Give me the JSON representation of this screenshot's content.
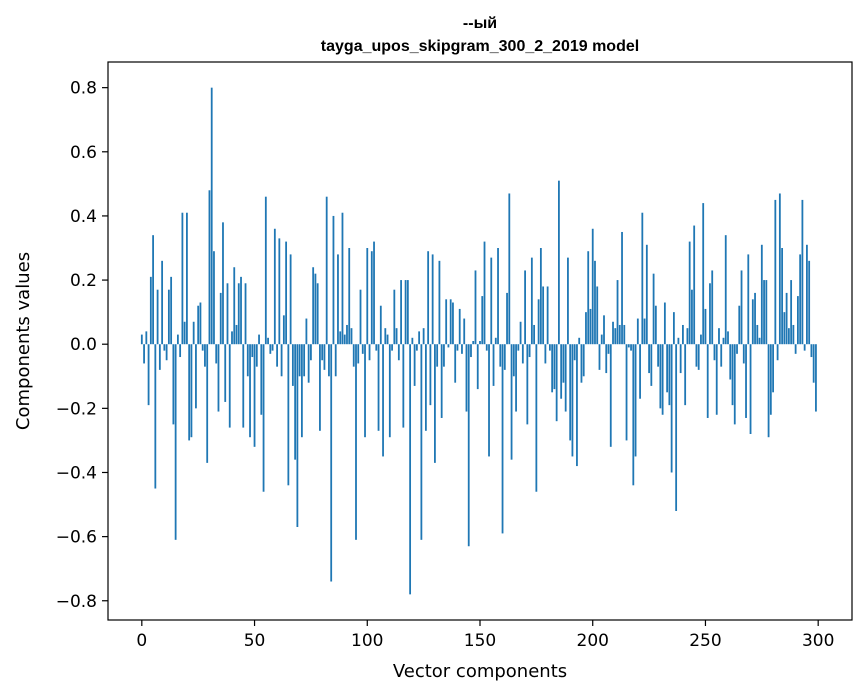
{
  "chart_data": {
    "type": "bar",
    "title_line1": "--ый",
    "title_line2": "tayga_upos_skipgram_300_2_2019 model",
    "xlabel": "Vector components",
    "ylabel": "Components values",
    "xlim": [
      -15,
      315
    ],
    "ylim": [
      -0.86,
      0.88
    ],
    "xticks": [
      0,
      50,
      100,
      150,
      200,
      250,
      300
    ],
    "xtick_labels": [
      "0",
      "50",
      "100",
      "150",
      "200",
      "250",
      "300"
    ],
    "yticks": [
      0.8,
      0.6,
      0.4,
      0.2,
      0.0,
      -0.2,
      -0.4,
      -0.6,
      -0.8
    ],
    "ytick_labels": [
      "0.8",
      "0.6",
      "0.4",
      "0.2",
      "0.0",
      "−0.2",
      "−0.4",
      "−0.6",
      "−0.8"
    ],
    "bar_color": "#1f77b4",
    "values": [
      0.03,
      -0.06,
      0.04,
      -0.19,
      0.21,
      0.34,
      -0.45,
      0.17,
      -0.08,
      0.26,
      -0.02,
      -0.05,
      0.17,
      0.21,
      -0.25,
      -0.61,
      0.03,
      -0.04,
      0.41,
      0.07,
      0.41,
      -0.3,
      -0.29,
      0.07,
      -0.2,
      0.12,
      0.13,
      -0.02,
      -0.07,
      -0.37,
      0.48,
      0.8,
      0.29,
      -0.06,
      -0.21,
      0.16,
      0.38,
      -0.18,
      0.19,
      -0.26,
      0.04,
      0.24,
      0.06,
      0.19,
      0.21,
      -0.26,
      0.19,
      -0.1,
      -0.29,
      -0.04,
      -0.32,
      -0.07,
      0.03,
      -0.22,
      -0.46,
      0.46,
      0.02,
      -0.03,
      -0.02,
      0.36,
      -0.07,
      0.33,
      -0.1,
      0.09,
      0.32,
      -0.44,
      0.28,
      -0.13,
      -0.36,
      -0.57,
      -0.1,
      -0.29,
      -0.1,
      0.08,
      -0.12,
      -0.05,
      0.24,
      0.22,
      0.19,
      -0.27,
      -0.05,
      -0.08,
      0.46,
      -0.1,
      -0.74,
      0.4,
      -0.1,
      0.28,
      0.04,
      0.41,
      0.03,
      0.06,
      0.3,
      0.05,
      -0.07,
      -0.61,
      -0.06,
      0.17,
      -0.03,
      -0.29,
      0.3,
      -0.05,
      0.29,
      0.32,
      -0.02,
      -0.27,
      0.12,
      -0.35,
      0.05,
      0.03,
      -0.29,
      -0.02,
      0.17,
      0.05,
      -0.05,
      0.2,
      -0.26,
      0.2,
      0.2,
      -0.78,
      0.02,
      -0.13,
      -0.02,
      0.04,
      -0.61,
      0.05,
      -0.27,
      0.29,
      -0.19,
      0.28,
      -0.37,
      -0.07,
      0.26,
      -0.23,
      -0.07,
      0.14,
      -0.01,
      0.14,
      0.13,
      -0.12,
      -0.02,
      0.11,
      -0.03,
      0.08,
      -0.21,
      -0.63,
      -0.04,
      0.01,
      0.23,
      -0.14,
      0.01,
      0.15,
      0.32,
      -0.02,
      -0.35,
      0.27,
      -0.13,
      0.02,
      0.3,
      -0.07,
      -0.59,
      -0.08,
      0.16,
      0.47,
      -0.36,
      -0.1,
      -0.21,
      -0.02,
      0.07,
      -0.06,
      0.23,
      -0.25,
      -0.04,
      0.27,
      0.06,
      -0.46,
      0.14,
      0.3,
      0.18,
      -0.06,
      0.18,
      -0.02,
      -0.15,
      -0.14,
      -0.24,
      0.51,
      -0.17,
      -0.12,
      -0.21,
      0.27,
      -0.3,
      -0.35,
      -0.05,
      -0.38,
      0.02,
      -0.12,
      -0.1,
      0.1,
      0.29,
      0.11,
      0.36,
      0.26,
      0.18,
      -0.08,
      0.03,
      0.09,
      -0.09,
      -0.03,
      -0.32,
      0.07,
      0.05,
      0.2,
      0.06,
      0.35,
      0.06,
      -0.3,
      -0.01,
      -0.02,
      -0.44,
      -0.35,
      0.08,
      -0.17,
      0.41,
      0.08,
      0.31,
      -0.09,
      -0.13,
      0.22,
      0.12,
      -0.07,
      -0.2,
      -0.22,
      0.13,
      -0.15,
      -0.19,
      -0.4,
      0.1,
      -0.52,
      0.02,
      -0.09,
      0.06,
      -0.19,
      0.05,
      0.32,
      0.17,
      0.37,
      -0.07,
      -0.08,
      0.03,
      0.44,
      0.11,
      -0.23,
      0.19,
      0.23,
      -0.05,
      -0.22,
      0.05,
      -0.07,
      0.02,
      0.34,
      0.04,
      -0.11,
      -0.19,
      -0.25,
      -0.03,
      0.12,
      0.23,
      -0.06,
      -0.23,
      0.28,
      -0.28,
      0.14,
      0.16,
      0.06,
      0.02,
      0.31,
      0.2,
      0.2,
      -0.29,
      -0.22,
      -0.15,
      0.45,
      -0.05,
      0.47,
      0.3,
      0.1,
      0.16,
      0.05,
      0.2,
      0.06,
      -0.03,
      0.15,
      0.28,
      0.45,
      -0.02,
      0.31,
      0.26,
      -0.04,
      -0.12,
      -0.21
    ]
  }
}
